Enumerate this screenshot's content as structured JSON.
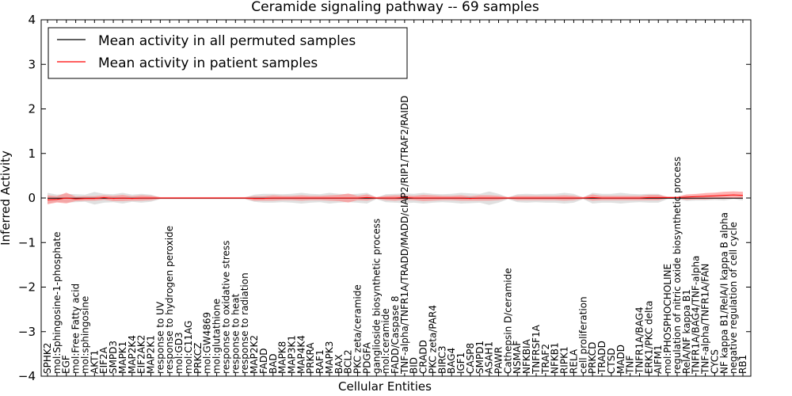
{
  "chart_data": {
    "type": "line",
    "title": "Ceramide signaling pathway -- 69 samples",
    "xlabel": "Cellular Entities",
    "ylabel": "Inferred Activity",
    "ylim": [
      -4,
      4
    ],
    "yticks": [
      "4",
      "3",
      "2",
      "1",
      "0",
      "−1",
      "−2",
      "−3",
      "−4"
    ],
    "legend_position": "top-left",
    "categories": [
      "SPHK2",
      "mol:Sphingosine-1-phosphate",
      "EGF",
      "mol:Free Fatty acid",
      "mol:sphingosine",
      "AKT1",
      "EIF2A",
      "SMPD3",
      "MAPK1",
      "MAP2K4",
      "EIF2AK2",
      "MAP2K1",
      "response to UV",
      "response to hydrogen peroxide",
      "mol:GD3",
      "mol:C11AG",
      "PRKCZ",
      "mol:GW4869",
      "mol:glutathione",
      "response to oxidative stress",
      "response to heat",
      "response to radiation",
      "MAP2K2",
      "FADD",
      "BAD",
      "MAPK8",
      "MAP3K1",
      "MAP4K4",
      "PRKRA",
      "RAF1",
      "MAPK3",
      "BAX",
      "BCL2",
      "PKC zeta/ceramide",
      "PDGFA",
      "ganglioside biosynthetic process",
      "mol:ceramide",
      "FADD/Caspase 8",
      "TNF-alpha/TNFR1A/TRADD/MADD/cIAP2/RIP1/TRAF2/RAIDD",
      "BID",
      "CRADD",
      "PKC zeta/PAR4",
      "BIRC3",
      "BAG4",
      "IGF1",
      "CASP8",
      "SMPD1",
      "ASAH1",
      "PAWR",
      "Cathepsin D/ceramide",
      "NSMAF",
      "NFKBIA",
      "TNFRSF1A",
      "TRAF2",
      "NFKB1",
      "RIPK1",
      "RELA",
      "cell proliferation",
      "PRKCD",
      "TRADD",
      "CTSD",
      "MADD",
      "TNF",
      "TNFR1A/BAG4",
      "ERK1/PKC delta",
      "AIFM1",
      "mol:PHOSPHOCHOLINE",
      "regulation of nitric oxide biosynthetic process",
      "RelA/NF kappa B1",
      "TNFR1A/BAG4/TNF-alpha",
      "TNF-alpha/TNFR1A/FAN",
      "CYCS",
      "NF kappa B1/RelA/I kappa B alpha",
      "negative regulation of cell cycle",
      "RB1"
    ],
    "series": [
      {
        "name": "Mean activity in all permuted samples",
        "color": "#000000",
        "band_color": "#bbbbbb",
        "values": [
          -0.005,
          -0.005,
          -0.005,
          -0.005,
          -0.005,
          -0.005,
          -0.005,
          -0.005,
          -0.005,
          -0.005,
          -0.005,
          -0.005,
          -0.005,
          -0.005,
          -0.005,
          -0.005,
          -0.005,
          -0.005,
          -0.005,
          -0.005,
          -0.005,
          -0.005,
          -0.005,
          -0.005,
          -0.005,
          -0.005,
          -0.005,
          -0.005,
          -0.005,
          -0.005,
          -0.005,
          -0.005,
          -0.005,
          -0.005,
          -0.005,
          -0.005,
          -0.005,
          -0.005,
          -0.005,
          -0.005,
          -0.005,
          -0.005,
          -0.005,
          -0.005,
          -0.005,
          -0.005,
          -0.005,
          -0.005,
          -0.005,
          -0.005,
          -0.005,
          -0.005,
          -0.005,
          -0.005,
          -0.005,
          -0.005,
          -0.005,
          -0.005,
          -0.005,
          -0.005,
          -0.005,
          -0.005,
          -0.005,
          -0.005,
          -0.005,
          -0.005,
          -0.005,
          -0.005,
          -0.005,
          -0.005,
          -0.005,
          -0.005,
          -0.005,
          -0.005,
          -0.005
        ],
        "spread": [
          0.12,
          0.08,
          0.1,
          0.09,
          0.08,
          0.14,
          0.1,
          0.09,
          0.12,
          0.08,
          0.1,
          0.08,
          0.02,
          0.02,
          0.02,
          0.02,
          0.02,
          0.02,
          0.02,
          0.02,
          0.02,
          0.02,
          0.08,
          0.1,
          0.1,
          0.09,
          0.1,
          0.12,
          0.1,
          0.09,
          0.12,
          0.1,
          0.09,
          0.1,
          0.12,
          0.02,
          0.09,
          0.1,
          0.11,
          0.1,
          0.12,
          0.1,
          0.09,
          0.1,
          0.12,
          0.11,
          0.1,
          0.15,
          0.1,
          0.02,
          0.09,
          0.1,
          0.09,
          0.1,
          0.1,
          0.12,
          0.1,
          0.02,
          0.12,
          0.1,
          0.1,
          0.12,
          0.1,
          0.09,
          0.1,
          0.1,
          0.02,
          0.02,
          0.06,
          0.05,
          0.05,
          0.04,
          0.05,
          0.02,
          0.05
        ]
      },
      {
        "name": "Mean activity in patient samples",
        "color": "#ff0000",
        "band_color": "#ff7f7f",
        "values": [
          -0.04,
          -0.03,
          0.0,
          -0.02,
          -0.01,
          -0.01,
          0.01,
          -0.01,
          0.0,
          -0.01,
          0.0,
          0.0,
          0.0,
          0.0,
          0.0,
          0.0,
          0.0,
          0.0,
          0.0,
          0.0,
          0.0,
          0.0,
          -0.01,
          -0.01,
          0.0,
          0.0,
          0.0,
          0.0,
          0.0,
          0.0,
          0.0,
          0.0,
          0.0,
          0.0,
          0.01,
          0.0,
          0.0,
          0.0,
          0.01,
          0.0,
          0.0,
          0.0,
          0.0,
          0.0,
          0.0,
          -0.01,
          0.0,
          0.0,
          0.0,
          0.0,
          0.0,
          0.0,
          0.0,
          0.0,
          0.0,
          0.0,
          0.0,
          0.0,
          0.01,
          0.0,
          0.0,
          0.0,
          0.0,
          0.0,
          0.01,
          0.01,
          0.01,
          0.01,
          0.02,
          0.03,
          0.04,
          0.05,
          0.06,
          0.07,
          0.06
        ],
        "spread": [
          0.1,
          0.07,
          0.12,
          0.05,
          0.05,
          0.05,
          0.05,
          0.06,
          0.07,
          0.05,
          0.06,
          0.05,
          0.02,
          0.02,
          0.02,
          0.02,
          0.02,
          0.02,
          0.02,
          0.02,
          0.02,
          0.02,
          0.05,
          0.05,
          0.06,
          0.05,
          0.05,
          0.06,
          0.05,
          0.05,
          0.06,
          0.07,
          0.1,
          0.05,
          0.07,
          0.02,
          0.05,
          0.06,
          0.05,
          0.05,
          0.07,
          0.06,
          0.05,
          0.05,
          0.06,
          0.05,
          0.06,
          0.06,
          0.05,
          0.02,
          0.05,
          0.05,
          0.05,
          0.05,
          0.05,
          0.06,
          0.05,
          0.02,
          0.07,
          0.05,
          0.05,
          0.05,
          0.05,
          0.05,
          0.06,
          0.06,
          0.02,
          0.02,
          0.06,
          0.06,
          0.07,
          0.07,
          0.08,
          0.08,
          0.08
        ]
      }
    ]
  }
}
